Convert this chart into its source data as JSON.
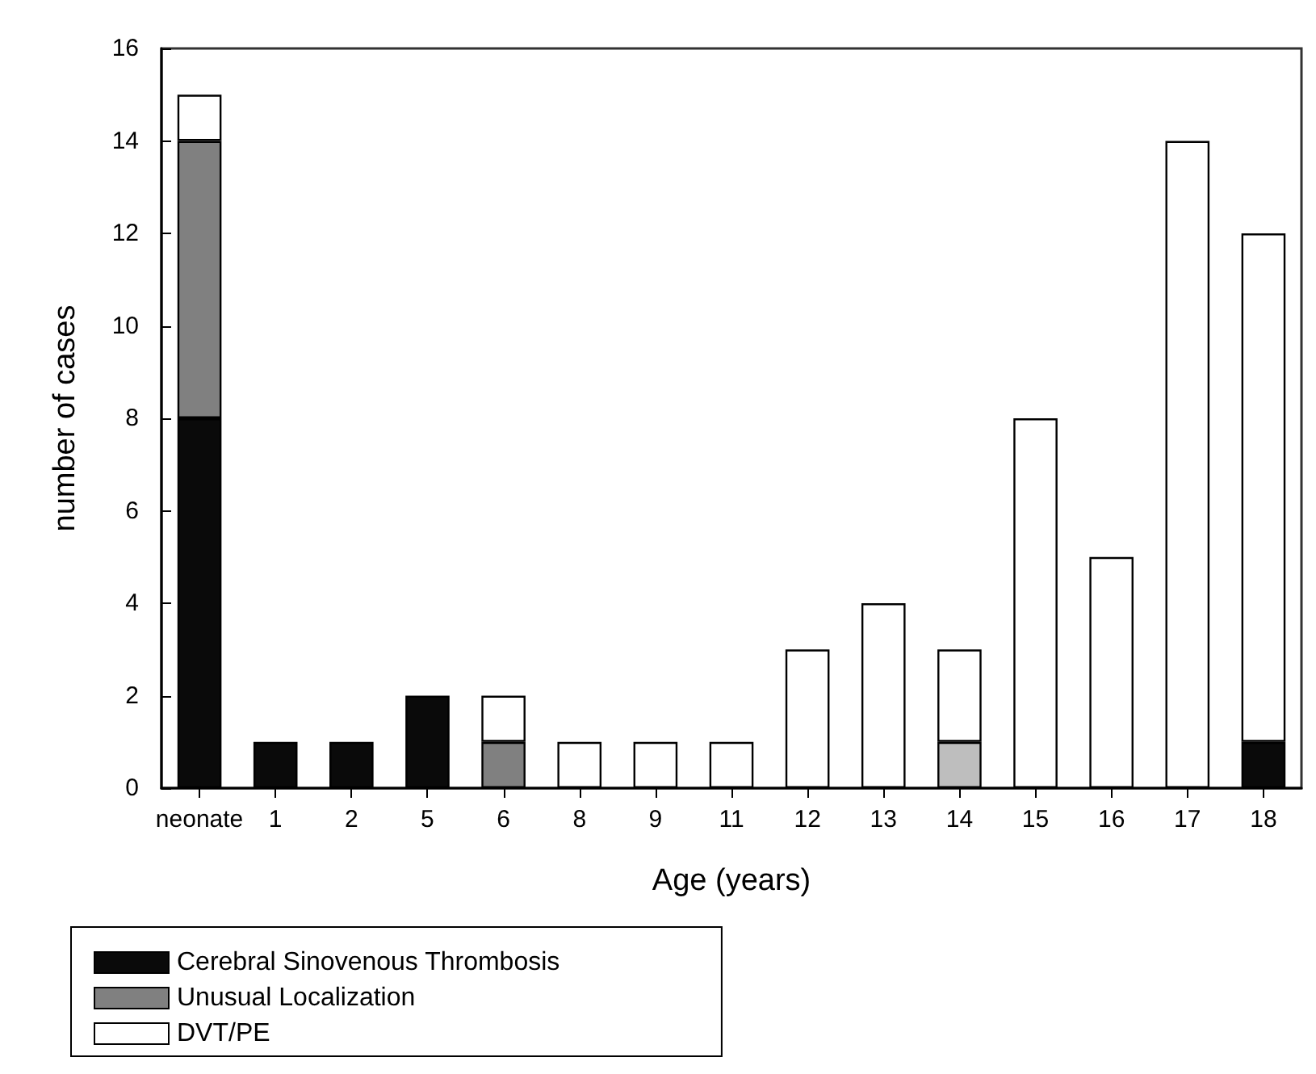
{
  "chart_data": {
    "type": "bar",
    "stacked": true,
    "xlabel": "Age (years)",
    "ylabel": "number of cases",
    "categories": [
      "neonate",
      "1",
      "2",
      "5",
      "6",
      "8",
      "9",
      "11",
      "12",
      "13",
      "14",
      "15",
      "16",
      "17",
      "18"
    ],
    "series": [
      {
        "name": "Cerebral Sinovenous Thrombosis",
        "color": "#0a0a0a",
        "values": [
          8,
          1,
          1,
          2,
          0,
          0,
          0,
          0,
          0,
          0,
          0,
          0,
          0,
          0,
          1
        ]
      },
      {
        "name": "Unusual Localization",
        "color": "#808080",
        "colors": [
          "#808080",
          "#808080",
          "#808080",
          "#808080",
          "#808080",
          "#808080",
          "#808080",
          "#808080",
          "#808080",
          "#808080",
          "#bebebe",
          "#808080",
          "#808080",
          "#808080",
          "#808080"
        ],
        "values": [
          6,
          0,
          0,
          0,
          1,
          0,
          0,
          0,
          0,
          0,
          1,
          0,
          0,
          0,
          0
        ]
      },
      {
        "name": "DVT/PE",
        "color": "#ffffff",
        "values": [
          1,
          0,
          0,
          0,
          1,
          1,
          1,
          1,
          3,
          4,
          2,
          8,
          5,
          14,
          11
        ]
      }
    ],
    "ylim": [
      0,
      16
    ],
    "yticks": [
      0,
      2,
      4,
      6,
      8,
      10,
      12,
      14,
      16
    ],
    "grid": false,
    "legend": "bottom left"
  }
}
